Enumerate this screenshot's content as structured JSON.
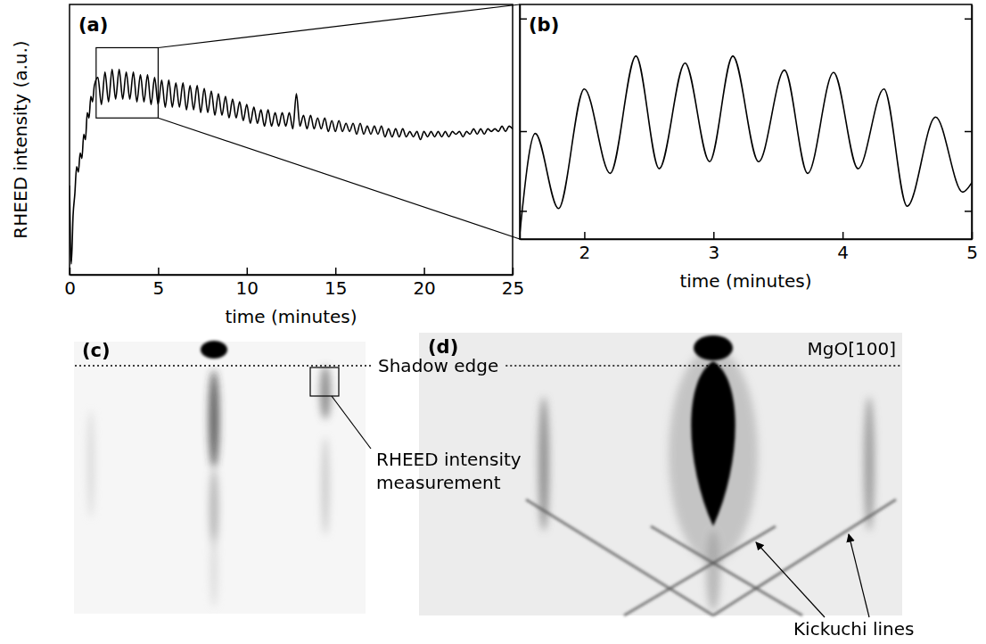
{
  "chart_data": [
    {
      "type": "line",
      "label": "(a)",
      "xlabel": "time (minutes)",
      "ylabel": "RHEED intensity (a.u.)",
      "color": "#000000",
      "tick_labels": "x",
      "xlim": [
        0,
        25
      ],
      "xticks": [
        0,
        5,
        10,
        15,
        20,
        25
      ],
      "ylim": [
        0,
        100
      ],
      "zoom_box": {
        "x": [
          1.5,
          5
        ],
        "y": [
          58,
          84
        ]
      },
      "x": [
        0,
        0.05,
        0.1,
        0.2,
        0.3,
        0.4,
        0.5,
        0.6,
        0.7,
        0.8,
        0.9,
        1.0,
        1.1,
        1.2,
        1.3,
        1.4,
        1.6,
        1.8,
        2,
        2.2,
        2.4,
        2.6,
        2.8,
        3,
        3.2,
        3.4,
        3.6,
        3.8,
        4,
        4.2,
        4.4,
        4.6,
        4.8,
        5,
        5.2,
        5.4,
        5.6,
        5.8,
        6,
        6.2,
        6.4,
        6.6,
        6.8,
        7,
        7.2,
        7.4,
        7.6,
        7.8,
        8,
        8.2,
        8.4,
        8.6,
        8.8,
        9,
        9.2,
        9.4,
        9.6,
        9.8,
        10,
        10.2,
        10.4,
        10.6,
        10.8,
        11,
        11.2,
        11.4,
        11.6,
        11.8,
        12,
        12.2,
        12.4,
        12.6,
        12.8,
        13,
        13.2,
        13.4,
        13.6,
        13.8,
        14,
        14.2,
        14.4,
        14.6,
        14.8,
        15,
        15.2,
        15.4,
        15.6,
        15.8,
        16,
        16.2,
        16.4,
        16.6,
        16.8,
        17,
        17.2,
        17.4,
        17.6,
        17.8,
        18,
        18.2,
        18.4,
        18.6,
        18.8,
        19,
        19.2,
        19.4,
        19.6,
        19.8,
        20,
        20.2,
        20.4,
        20.6,
        20.8,
        21,
        21.2,
        21.4,
        21.6,
        21.8,
        22,
        22.2,
        22.4,
        22.6,
        22.8,
        23,
        23.2,
        23.4,
        23.6,
        23.8,
        24,
        24.2,
        24.4,
        24.6,
        24.8,
        25
      ],
      "values": [
        33,
        12,
        4,
        22,
        30,
        40,
        38,
        45,
        43,
        52,
        50,
        60,
        58,
        66,
        64,
        70,
        73,
        63,
        75,
        64,
        76,
        65,
        76,
        65,
        75,
        65,
        75,
        64,
        74,
        64,
        74,
        63,
        73,
        63,
        72,
        62,
        72,
        62,
        71,
        62,
        71,
        61,
        70,
        61,
        70,
        60,
        69,
        60,
        68,
        59,
        67,
        59,
        66,
        58,
        65,
        58,
        64,
        57,
        63,
        56,
        62,
        56,
        61,
        55,
        61,
        55,
        60,
        55,
        60,
        55,
        60,
        54,
        67,
        55,
        59,
        54,
        59,
        54,
        58,
        54,
        58,
        53,
        57,
        53,
        57,
        53,
        56,
        53,
        56,
        52,
        56,
        52,
        55,
        52,
        55,
        52,
        55,
        51,
        54,
        51,
        54,
        51,
        54,
        51,
        53,
        51,
        53,
        50,
        53,
        51,
        53,
        51,
        53,
        51,
        53,
        51,
        53,
        52,
        53,
        51,
        53,
        52,
        54,
        52,
        54,
        52,
        54,
        53,
        54,
        53,
        55,
        53,
        55,
        54
      ]
    },
    {
      "type": "line",
      "label": "(b)",
      "xlabel": "time (minutes)",
      "color": "#000000",
      "tick_labels": "x",
      "xlim": [
        1.5,
        5
      ],
      "xticks": [
        2,
        3,
        4,
        5
      ],
      "ylim": [
        0,
        100
      ],
      "yticks": [
        12,
        46,
        94
      ],
      "x": [
        1.5,
        1.62,
        1.8,
        2.0,
        2.2,
        2.4,
        2.58,
        2.78,
        2.97,
        3.15,
        3.35,
        3.55,
        3.73,
        3.93,
        4.12,
        4.32,
        4.5,
        4.72,
        4.93,
        5.0
      ],
      "values": [
        2,
        45,
        13,
        64,
        28,
        78,
        30,
        75,
        33,
        78,
        33,
        72,
        28,
        71,
        30,
        64,
        14,
        52,
        20,
        24
      ]
    }
  ],
  "images": {
    "shadow_edge": "Shadow edge",
    "c": {
      "label": "(c)",
      "measurement": "RHEED intensity measurement"
    },
    "d": {
      "label": "(d)",
      "direction": "MgO[100]",
      "kikuchi": "Kickuchi lines"
    }
  }
}
